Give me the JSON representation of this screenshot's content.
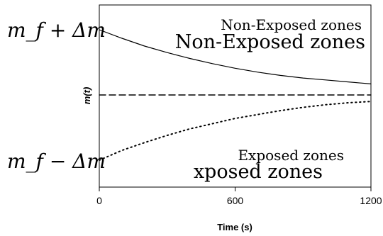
{
  "chart_data": {
    "type": "line",
    "title": "",
    "xlabel": "Time (s)",
    "ylabel": "m(t)",
    "xlim": [
      0,
      1200
    ],
    "ylim": [
      -1.3,
      1.3
    ],
    "x_ticks": [
      0,
      600,
      1200
    ],
    "x_tick_labels": [
      "0",
      "600",
      "1200"
    ],
    "y_tick_labels": {
      "upper": "m_f + Δm",
      "lower": "m_f − Δm"
    },
    "grid": false,
    "legend": "none",
    "series": [
      {
        "style": "solid",
        "x": [
          0,
          100,
          200,
          300,
          400,
          500,
          600,
          700,
          800,
          900,
          1000,
          1100,
          1200
        ],
        "y": [
          1.0,
          0.87,
          0.75,
          0.65,
          0.56,
          0.48,
          0.41,
          0.35,
          0.3,
          0.26,
          0.23,
          0.2,
          0.17
        ]
      },
      {
        "style": "dashed",
        "x": [
          0,
          1200
        ],
        "y": [
          0,
          0
        ]
      },
      {
        "style": "dotted",
        "x": [
          0,
          100,
          200,
          300,
          400,
          500,
          600,
          700,
          800,
          900,
          1000,
          1100,
          1200
        ],
        "y": [
          -1.0,
          -0.85,
          -0.73,
          -0.62,
          -0.52,
          -0.44,
          -0.36,
          -0.3,
          -0.24,
          -0.19,
          -0.15,
          -0.12,
          -0.1
        ]
      }
    ],
    "annotations": [
      {
        "text": "Non-Exposed zones"
      },
      {
        "text": "Non-Exposed zones"
      },
      {
        "text": "Exposed zones"
      },
      {
        "text": "xposed zones"
      }
    ]
  }
}
